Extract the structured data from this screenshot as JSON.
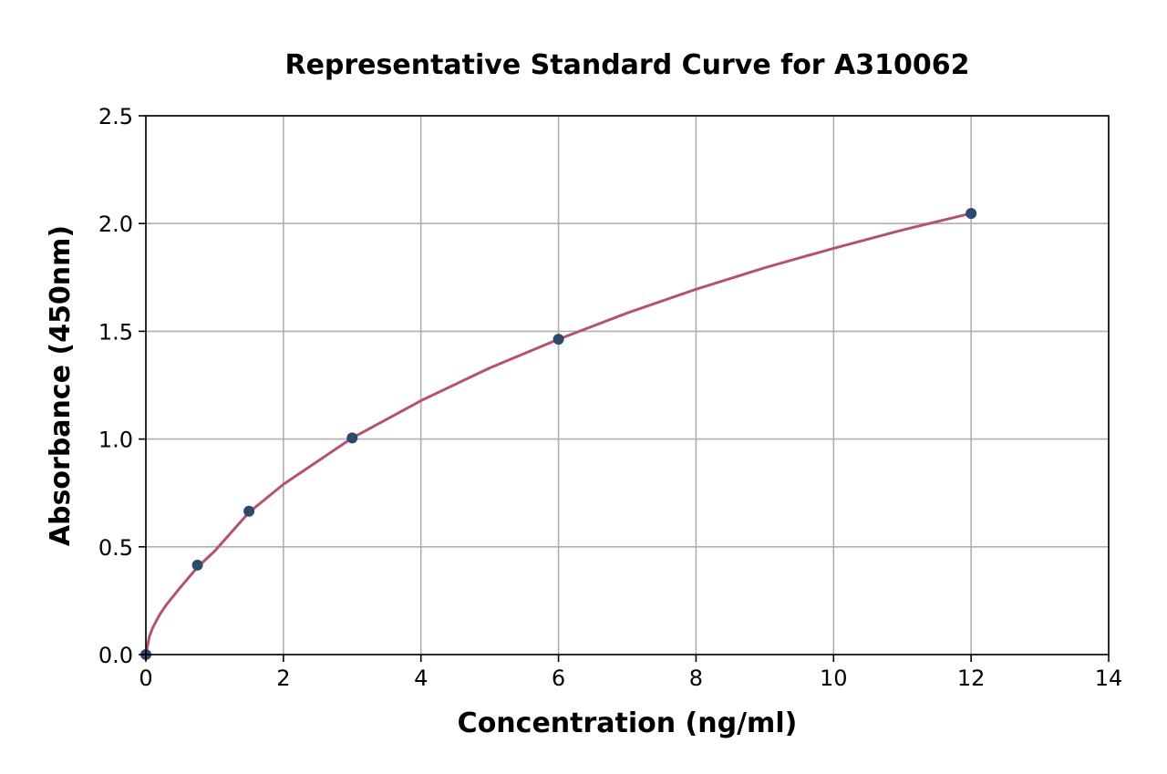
{
  "chart_data": {
    "type": "scatter",
    "title": "Representative Standard Curve for A310062",
    "xlabel": "Concentration (ng/ml)",
    "ylabel": "Absorbance (450nm)",
    "xlim": [
      0,
      14
    ],
    "ylim": [
      0,
      2.5
    ],
    "xticks": [
      0,
      2,
      4,
      6,
      8,
      10,
      12,
      14
    ],
    "yticks": [
      0.0,
      0.5,
      1.0,
      1.5,
      2.0,
      2.5
    ],
    "xtick_labels": [
      "0",
      "2",
      "4",
      "6",
      "8",
      "10",
      "12",
      "14"
    ],
    "ytick_labels": [
      "0.0",
      "0.5",
      "1.0",
      "1.5",
      "2.0",
      "2.5"
    ],
    "grid": true,
    "series": [
      {
        "kind": "points",
        "x": [
          0,
          0.75,
          1.5,
          3,
          6,
          12
        ],
        "y": [
          0.0,
          0.415,
          0.665,
          1.005,
          1.463,
          2.047
        ]
      },
      {
        "kind": "fit-curve",
        "x": [
          0,
          0.05,
          0.1,
          0.2,
          0.3,
          0.5,
          0.75,
          1,
          1.5,
          2,
          3,
          4,
          5,
          6,
          7,
          8,
          9,
          10,
          11,
          12
        ],
        "y": [
          0.0,
          0.083,
          0.125,
          0.185,
          0.232,
          0.311,
          0.405,
          0.48,
          0.66,
          0.79,
          1.005,
          1.178,
          1.33,
          1.463,
          1.585,
          1.695,
          1.795,
          1.885,
          1.97,
          2.047
        ]
      }
    ],
    "colors": {
      "points": "#2d4a6e",
      "curve": "#b5536e",
      "grid": "#b0b0b0",
      "axes": "#000000"
    }
  }
}
